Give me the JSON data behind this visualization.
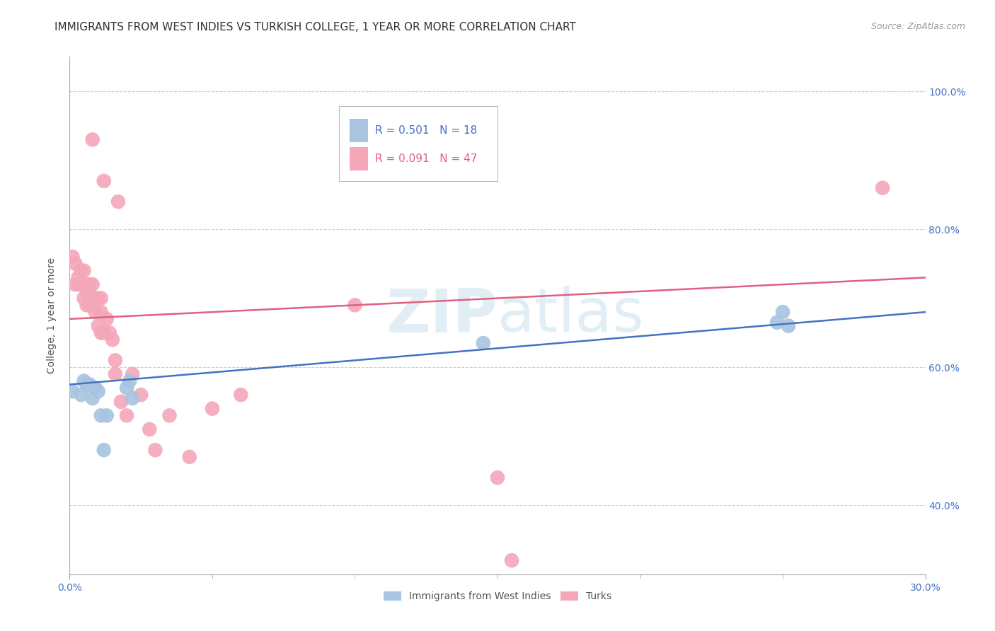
{
  "title": "IMMIGRANTS FROM WEST INDIES VS TURKISH COLLEGE, 1 YEAR OR MORE CORRELATION CHART",
  "source": "Source: ZipAtlas.com",
  "ylabel": "College, 1 year or more",
  "xlim": [
    0.0,
    0.3
  ],
  "ylim": [
    0.3,
    1.05
  ],
  "xtick_values": [
    0.0,
    0.3
  ],
  "ytick_values": [
    0.4,
    0.6,
    0.8,
    1.0
  ],
  "blue_R": 0.501,
  "blue_N": 18,
  "pink_R": 0.091,
  "pink_N": 47,
  "blue_color": "#a8c4e0",
  "pink_color": "#f4a7b9",
  "blue_line_color": "#4472c4",
  "pink_line_color": "#e06080",
  "legend_label_blue": "Immigrants from West Indies",
  "legend_label_pink": "Turks",
  "blue_x": [
    0.001,
    0.004,
    0.005,
    0.006,
    0.007,
    0.008,
    0.009,
    0.01,
    0.011,
    0.012,
    0.013,
    0.02,
    0.021,
    0.022,
    0.145,
    0.248,
    0.25,
    0.252
  ],
  "blue_y": [
    0.565,
    0.56,
    0.58,
    0.575,
    0.575,
    0.555,
    0.57,
    0.565,
    0.53,
    0.48,
    0.53,
    0.57,
    0.58,
    0.555,
    0.635,
    0.665,
    0.68,
    0.66
  ],
  "pink_x": [
    0.001,
    0.002,
    0.002,
    0.003,
    0.003,
    0.004,
    0.004,
    0.005,
    0.005,
    0.005,
    0.006,
    0.006,
    0.006,
    0.007,
    0.007,
    0.007,
    0.008,
    0.008,
    0.009,
    0.009,
    0.01,
    0.01,
    0.011,
    0.011,
    0.011,
    0.012,
    0.012,
    0.013,
    0.014,
    0.015,
    0.016,
    0.016,
    0.017,
    0.018,
    0.02,
    0.022,
    0.025,
    0.028,
    0.03,
    0.035,
    0.042,
    0.05,
    0.06,
    0.1,
    0.15,
    0.155,
    0.285
  ],
  "pink_y": [
    0.76,
    0.75,
    0.72,
    0.72,
    0.73,
    0.72,
    0.74,
    0.7,
    0.72,
    0.74,
    0.69,
    0.71,
    0.72,
    0.72,
    0.7,
    0.69,
    0.72,
    0.93,
    0.68,
    0.7,
    0.66,
    0.7,
    0.65,
    0.68,
    0.7,
    0.65,
    0.87,
    0.67,
    0.65,
    0.64,
    0.59,
    0.61,
    0.84,
    0.55,
    0.53,
    0.59,
    0.56,
    0.51,
    0.48,
    0.53,
    0.47,
    0.54,
    0.56,
    0.69,
    0.44,
    0.32,
    0.86
  ],
  "background_color": "#ffffff",
  "grid_color": "#d0d0d0",
  "title_fontsize": 11,
  "axis_label_fontsize": 10,
  "tick_fontsize": 10,
  "legend_fontsize": 11,
  "blue_line_x0": 0.0,
  "blue_line_y0": 0.575,
  "blue_line_x1": 0.3,
  "blue_line_y1": 0.68,
  "pink_line_x0": 0.0,
  "pink_line_y0": 0.67,
  "pink_line_x1": 0.3,
  "pink_line_y1": 0.73
}
